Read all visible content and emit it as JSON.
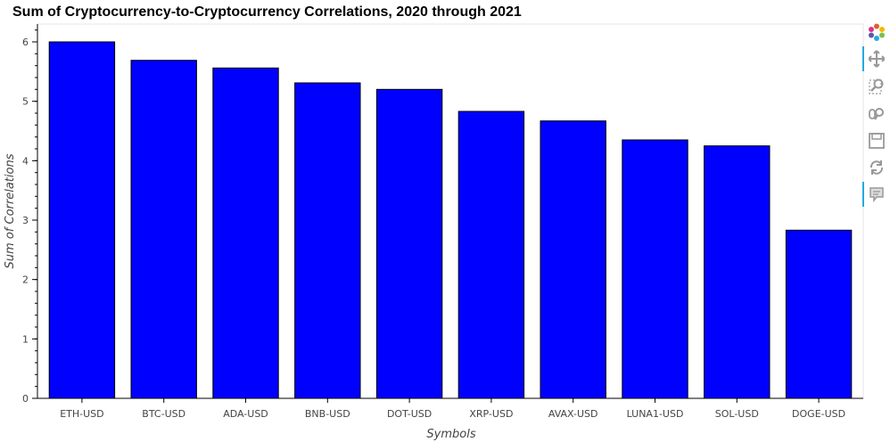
{
  "chart_data": {
    "type": "bar",
    "title": "Sum of Cryptocurrency-to-Cryptocurrency Correlations, 2020 through 2021",
    "xlabel": "Symbols",
    "ylabel": "Sum of Correlations",
    "categories": [
      "ETH-USD",
      "BTC-USD",
      "ADA-USD",
      "BNB-USD",
      "DOT-USD",
      "XRP-USD",
      "AVAX-USD",
      "LUNA1-USD",
      "SOL-USD",
      "DOGE-USD"
    ],
    "values": [
      6.0,
      5.69,
      5.56,
      5.31,
      5.2,
      4.83,
      4.67,
      4.35,
      4.25,
      2.83
    ],
    "ylim": [
      0,
      6.3
    ],
    "yticks": [
      0,
      1,
      2,
      3,
      4,
      5,
      6
    ],
    "bar_color": "#0000ff",
    "grid": false,
    "legend": "none"
  },
  "toolbar": {
    "tools": [
      {
        "name": "bokeh-logo-icon",
        "active": false
      },
      {
        "name": "pan-icon",
        "active": true
      },
      {
        "name": "box-zoom-icon",
        "active": false
      },
      {
        "name": "wheel-zoom-icon",
        "active": false
      },
      {
        "name": "save-icon",
        "active": false
      },
      {
        "name": "reset-icon",
        "active": false
      },
      {
        "name": "hover-icon",
        "active": true
      }
    ]
  }
}
